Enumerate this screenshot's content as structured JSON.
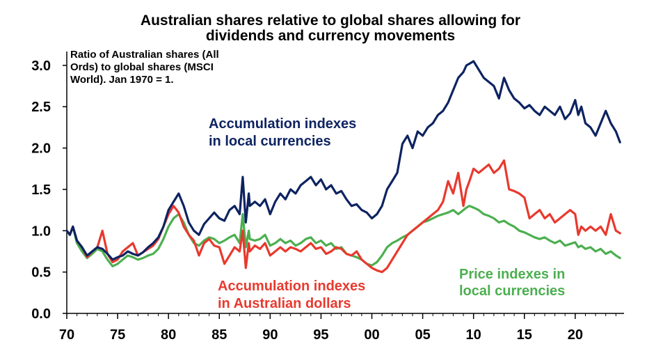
{
  "chart_data": {
    "type": "line",
    "title": "Australian shares relative to global shares allowing for dividends and currency movements",
    "title_lines": [
      "Australian shares relative to global shares allowing for",
      "dividends and currency movements"
    ],
    "note_lines": [
      "Ratio of Australian shares (All",
      "Ords) to global shares (MSCI",
      "World). Jan 1970 = 1."
    ],
    "xlabel": "",
    "ylabel": "",
    "xlim": [
      1970,
      2024.8
    ],
    "ylim": [
      0,
      3.1
    ],
    "x_ticks": [
      1970,
      1975,
      1980,
      1985,
      1990,
      1995,
      2000,
      2005,
      2010,
      2015,
      2020
    ],
    "x_tick_labels": [
      "70",
      "75",
      "80",
      "85",
      "90",
      "95",
      "00",
      "05",
      "10",
      "15",
      "20"
    ],
    "y_ticks": [
      0,
      0.5,
      1,
      1.5,
      2,
      2.5,
      3
    ],
    "y_tick_labels": [
      "0.0",
      "0.5",
      "1.0",
      "1.5",
      "2.0",
      "2.5",
      "3.0"
    ],
    "grid": false,
    "legend": "inline labels",
    "series": [
      {
        "name": "Accumulation indexes in local currencies",
        "label_lines": [
          "Accumulation indexes",
          "in local currencies"
        ],
        "color": "#0d2361",
        "x": [
          1970,
          1970.3,
          1970.6,
          1971,
          1971.5,
          1972,
          1972.5,
          1973,
          1973.5,
          1974,
          1974.5,
          1975,
          1975.5,
          1976,
          1976.5,
          1977,
          1977.5,
          1978,
          1978.5,
          1979,
          1979.5,
          1980,
          1980.5,
          1981,
          1981.5,
          1982,
          1982.5,
          1983,
          1983.5,
          1984,
          1984.5,
          1985,
          1985.5,
          1986,
          1986.5,
          1987,
          1987.3,
          1987.6,
          1987.9,
          1988,
          1988.5,
          1989,
          1989.5,
          1990,
          1990.5,
          1991,
          1991.5,
          1992,
          1992.5,
          1993,
          1993.5,
          1994,
          1994.5,
          1995,
          1995.5,
          1996,
          1996.5,
          1997,
          1997.5,
          1998,
          1998.5,
          1999,
          1999.5,
          2000,
          2000.5,
          2001,
          2001.5,
          2002,
          2002.5,
          2003,
          2003.5,
          2004,
          2004.5,
          2005,
          2005.5,
          2006,
          2006.5,
          2007,
          2007.5,
          2008,
          2008.5,
          2009,
          2009.3,
          2009.6,
          2010,
          2010.5,
          2011,
          2011.5,
          2012,
          2012.5,
          2013,
          2013.5,
          2014,
          2014.5,
          2015,
          2015.5,
          2016,
          2016.5,
          2017,
          2017.5,
          2018,
          2018.5,
          2019,
          2019.5,
          2020,
          2020.3,
          2020.6,
          2021,
          2021.5,
          2022,
          2022.5,
          2023,
          2023.5,
          2024,
          2024.4
        ],
        "values": [
          1.0,
          0.95,
          1.05,
          0.88,
          0.8,
          0.7,
          0.75,
          0.8,
          0.78,
          0.72,
          0.65,
          0.68,
          0.7,
          0.75,
          0.72,
          0.7,
          0.74,
          0.8,
          0.85,
          0.92,
          1.05,
          1.25,
          1.35,
          1.45,
          1.3,
          1.1,
          1.0,
          0.95,
          1.08,
          1.15,
          1.22,
          1.15,
          1.12,
          1.25,
          1.3,
          1.2,
          1.65,
          1.1,
          1.45,
          1.3,
          1.35,
          1.3,
          1.38,
          1.2,
          1.35,
          1.45,
          1.38,
          1.5,
          1.45,
          1.55,
          1.6,
          1.65,
          1.55,
          1.62,
          1.5,
          1.55,
          1.45,
          1.48,
          1.38,
          1.3,
          1.32,
          1.25,
          1.22,
          1.15,
          1.2,
          1.3,
          1.5,
          1.6,
          1.7,
          2.05,
          2.15,
          2.0,
          2.2,
          2.15,
          2.25,
          2.3,
          2.4,
          2.45,
          2.55,
          2.7,
          2.85,
          2.92,
          3.0,
          3.02,
          3.05,
          2.95,
          2.85,
          2.8,
          2.75,
          2.6,
          2.85,
          2.7,
          2.6,
          2.55,
          2.48,
          2.52,
          2.45,
          2.4,
          2.5,
          2.45,
          2.4,
          2.5,
          2.35,
          2.42,
          2.58,
          2.4,
          2.5,
          2.3,
          2.25,
          2.15,
          2.3,
          2.45,
          2.3,
          2.2,
          2.07
        ]
      },
      {
        "name": "Accumulation indexes in Australian dollars",
        "label_lines": [
          "Accumulation indexes",
          "in Australian dollars"
        ],
        "color": "#e8392e",
        "x": [
          1970,
          1970.3,
          1970.6,
          1971,
          1971.5,
          1972,
          1972.5,
          1973,
          1973.5,
          1974,
          1974.5,
          1975,
          1975.5,
          1976,
          1976.5,
          1977,
          1977.5,
          1978,
          1978.5,
          1979,
          1979.5,
          1980,
          1980.5,
          1981,
          1981.5,
          1982,
          1982.5,
          1983,
          1983.5,
          1984,
          1984.5,
          1985,
          1985.5,
          1986,
          1986.5,
          1987,
          1987.3,
          1987.6,
          1987.9,
          1988,
          1988.5,
          1989,
          1989.5,
          1990,
          1990.5,
          1991,
          1991.5,
          1992,
          1992.5,
          1993,
          1993.5,
          1994,
          1994.5,
          1995,
          1995.5,
          1996,
          1996.5,
          1997,
          1997.5,
          1998,
          1998.5,
          1999,
          1999.5,
          2000,
          2000.5,
          2001,
          2001.5,
          2002,
          2002.5,
          2003,
          2003.5,
          2004,
          2004.5,
          2005,
          2005.5,
          2006,
          2006.5,
          2007,
          2007.5,
          2008,
          2008.5,
          2009,
          2009.3,
          2009.6,
          2010,
          2010.5,
          2011,
          2011.5,
          2012,
          2012.5,
          2013,
          2013.5,
          2014,
          2014.5,
          2015,
          2015.5,
          2016,
          2016.5,
          2017,
          2017.5,
          2018,
          2018.5,
          2019,
          2019.5,
          2020,
          2020.3,
          2020.6,
          2021,
          2021.5,
          2022,
          2022.5,
          2023,
          2023.5,
          2024,
          2024.4
        ],
        "values": [
          1.0,
          0.95,
          1.05,
          0.88,
          0.8,
          0.68,
          0.75,
          0.8,
          1.0,
          0.72,
          0.62,
          0.65,
          0.75,
          0.8,
          0.85,
          0.7,
          0.74,
          0.78,
          0.82,
          0.9,
          1.05,
          1.2,
          1.3,
          1.22,
          1.05,
          0.95,
          0.88,
          0.7,
          0.85,
          0.9,
          0.82,
          0.8,
          0.6,
          0.7,
          0.8,
          0.75,
          1.0,
          0.55,
          0.85,
          0.75,
          0.82,
          0.78,
          0.85,
          0.7,
          0.75,
          0.8,
          0.75,
          0.8,
          0.78,
          0.75,
          0.8,
          0.85,
          0.78,
          0.8,
          0.72,
          0.75,
          0.8,
          0.78,
          0.72,
          0.7,
          0.75,
          0.65,
          0.6,
          0.55,
          0.52,
          0.5,
          0.55,
          0.65,
          0.75,
          0.85,
          0.95,
          1.0,
          1.05,
          1.1,
          1.15,
          1.2,
          1.25,
          1.35,
          1.6,
          1.45,
          1.7,
          1.3,
          1.5,
          1.6,
          1.75,
          1.7,
          1.75,
          1.8,
          1.7,
          1.75,
          1.85,
          1.5,
          1.48,
          1.45,
          1.4,
          1.15,
          1.2,
          1.25,
          1.15,
          1.2,
          1.1,
          1.15,
          1.2,
          1.25,
          1.2,
          0.95,
          1.05,
          1.0,
          1.05,
          1.0,
          1.05,
          0.95,
          1.2,
          1.0,
          0.97
        ]
      },
      {
        "name": "Price indexes in local currencies",
        "label_lines": [
          "Price indexes in",
          "local currencies"
        ],
        "color": "#4caf50",
        "x": [
          1970,
          1970.3,
          1970.6,
          1971,
          1971.5,
          1972,
          1972.5,
          1973,
          1973.5,
          1974,
          1974.5,
          1975,
          1975.5,
          1976,
          1976.5,
          1977,
          1977.5,
          1978,
          1978.5,
          1979,
          1979.5,
          1980,
          1980.5,
          1981,
          1981.5,
          1982,
          1982.5,
          1983,
          1983.5,
          1984,
          1984.5,
          1985,
          1985.5,
          1986,
          1986.5,
          1987,
          1987.3,
          1987.6,
          1987.9,
          1988,
          1988.5,
          1989,
          1989.5,
          1990,
          1990.5,
          1991,
          1991.5,
          1992,
          1992.5,
          1993,
          1993.5,
          1994,
          1994.5,
          1995,
          1995.5,
          1996,
          1996.5,
          1997,
          1997.5,
          1998,
          1998.5,
          1999,
          1999.5,
          2000,
          2000.5,
          2001,
          2001.5,
          2002,
          2002.5,
          2003,
          2003.5,
          2004,
          2004.5,
          2005,
          2005.5,
          2006,
          2006.5,
          2007,
          2007.5,
          2008,
          2008.5,
          2009,
          2009.3,
          2009.6,
          2010,
          2010.5,
          2011,
          2011.5,
          2012,
          2012.5,
          2013,
          2013.5,
          2014,
          2014.5,
          2015,
          2015.5,
          2016,
          2016.5,
          2017,
          2017.5,
          2018,
          2018.5,
          2019,
          2019.5,
          2020,
          2020.3,
          2020.6,
          2021,
          2021.5,
          2022,
          2022.5,
          2023,
          2023.5,
          2024,
          2024.4
        ],
        "values": [
          1.0,
          0.95,
          1.05,
          0.85,
          0.75,
          0.67,
          0.72,
          0.78,
          0.75,
          0.65,
          0.57,
          0.6,
          0.65,
          0.7,
          0.68,
          0.65,
          0.67,
          0.7,
          0.72,
          0.78,
          0.9,
          1.05,
          1.15,
          1.2,
          1.1,
          0.95,
          0.85,
          0.82,
          0.88,
          0.92,
          0.9,
          0.85,
          0.88,
          0.92,
          0.95,
          0.85,
          1.2,
          0.8,
          1.0,
          0.9,
          0.88,
          0.9,
          0.95,
          0.82,
          0.85,
          0.9,
          0.85,
          0.88,
          0.82,
          0.85,
          0.9,
          0.92,
          0.85,
          0.88,
          0.82,
          0.85,
          0.78,
          0.8,
          0.72,
          0.7,
          0.68,
          0.65,
          0.6,
          0.58,
          0.62,
          0.7,
          0.8,
          0.85,
          0.88,
          0.92,
          0.95,
          1.0,
          1.05,
          1.1,
          1.12,
          1.15,
          1.18,
          1.2,
          1.22,
          1.25,
          1.2,
          1.25,
          1.28,
          1.3,
          1.28,
          1.25,
          1.2,
          1.18,
          1.15,
          1.1,
          1.12,
          1.08,
          1.05,
          1.0,
          0.98,
          0.95,
          0.92,
          0.9,
          0.92,
          0.88,
          0.85,
          0.88,
          0.82,
          0.84,
          0.86,
          0.8,
          0.82,
          0.78,
          0.8,
          0.75,
          0.78,
          0.72,
          0.75,
          0.7,
          0.67
        ]
      }
    ]
  }
}
